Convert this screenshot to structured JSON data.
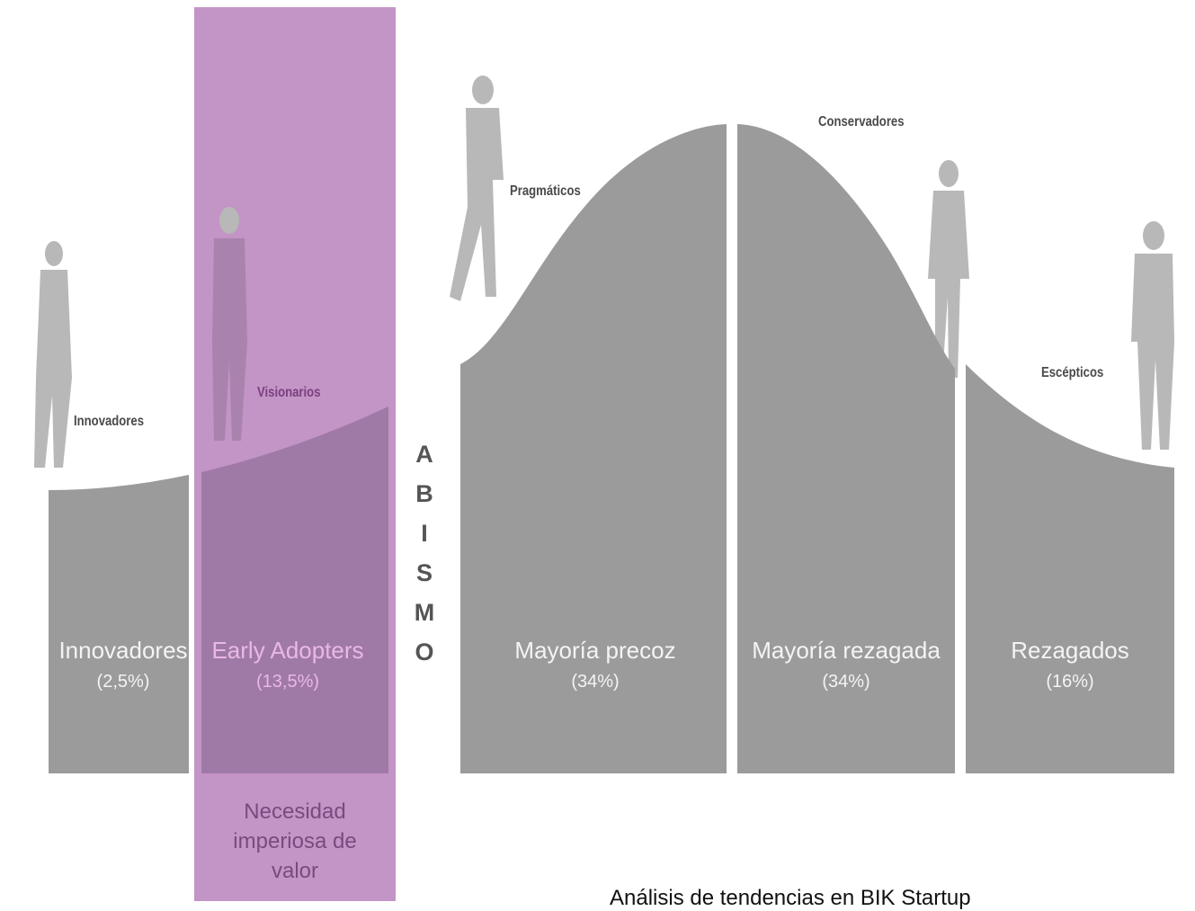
{
  "persona_labels": {
    "innovators": "Innovadores",
    "visionaries": "Visionarios",
    "pragmatists": "Pragmáticos",
    "conservatives": "Conservadores",
    "skeptics": "Escépticos"
  },
  "chasm": "ABISMO",
  "segments": [
    {
      "name": "Innovadores",
      "share": "(2,5%)"
    },
    {
      "name": "Early Adopters",
      "share": "(13,5%)"
    },
    {
      "name": "Mayoría precoz",
      "share": "(34%)"
    },
    {
      "name": "Mayoría rezagada",
      "share": "(34%)"
    },
    {
      "name": "Rezagados",
      "share": "(16%)"
    }
  ],
  "early_adopter_note": "Necesidad imperiosa de valor",
  "caption": "Análisis de tendencias en BIK Startup"
}
